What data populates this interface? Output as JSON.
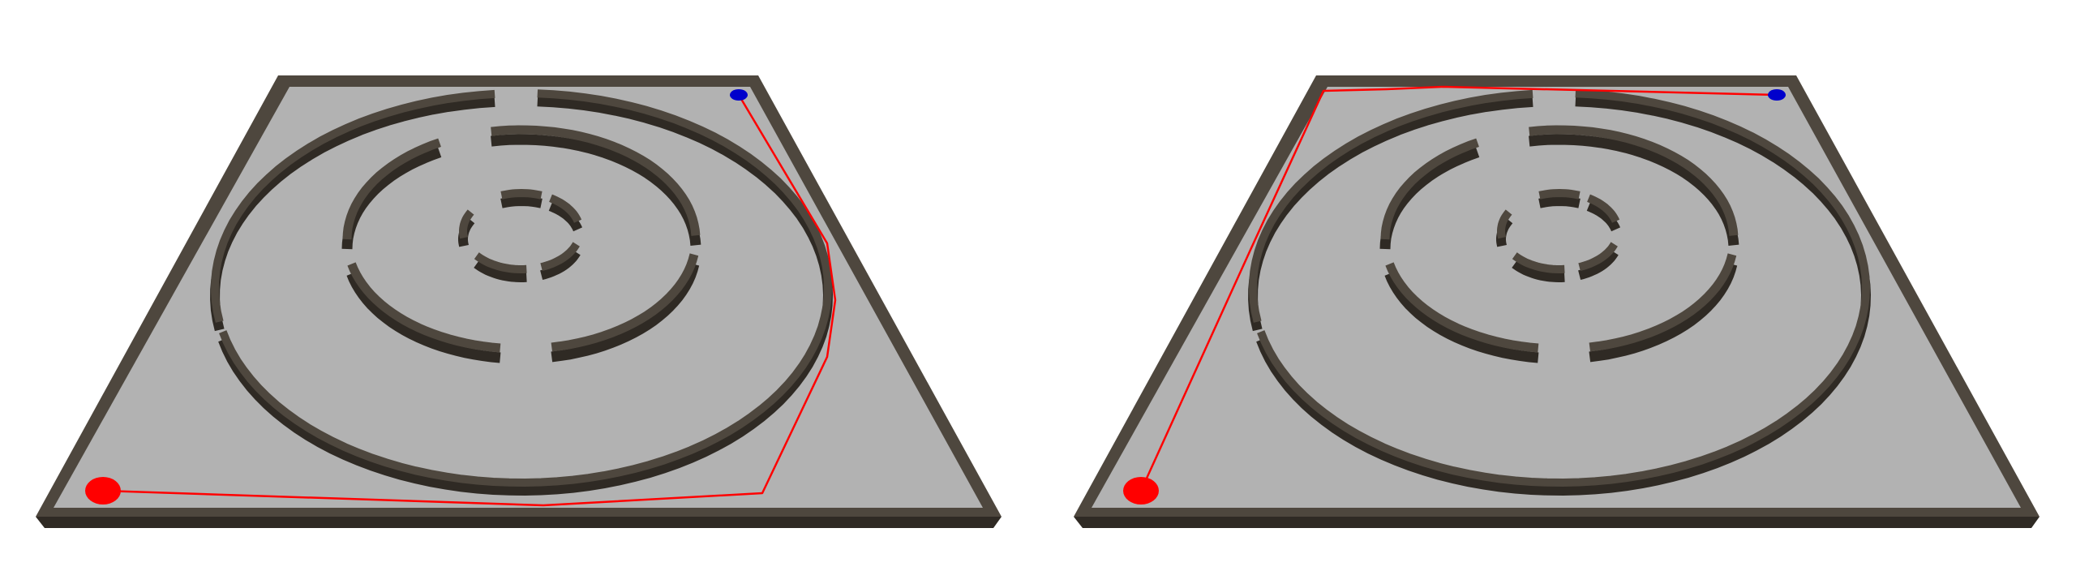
{
  "scene": {
    "colors": {
      "background": "#ffffff",
      "floor": "#b2b2b2",
      "wall_top": "#4e473e",
      "wall_side": "#2f2a24",
      "wall_edge": "#8a8175",
      "path": "#ff0000",
      "start_marker": "#ff0000",
      "goal_marker": "#0000cc"
    },
    "maze": {
      "type": "circular",
      "rings": 3,
      "outer_frame": "square"
    },
    "panels": [
      {
        "name": "left-panel",
        "path_route": "counterclockwise-right-side",
        "start_marker": "red-disk",
        "goal_marker": "blue-disk"
      },
      {
        "name": "right-panel",
        "path_route": "left-side-then-top-edge",
        "start_marker": "red-disk",
        "goal_marker": "blue-disk"
      }
    ]
  }
}
